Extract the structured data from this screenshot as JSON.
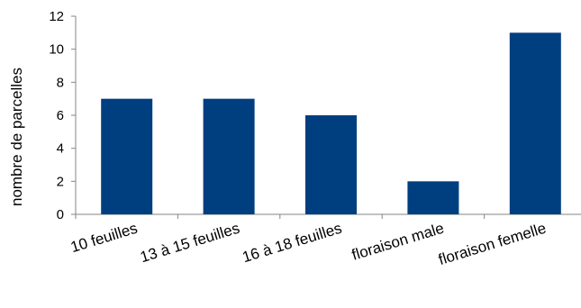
{
  "chart_data": {
    "type": "bar",
    "categories": [
      "10 feuilles",
      "13 à 15 feuilles",
      "16 à 18  feuilles",
      "floraison male",
      "floraison femelle"
    ],
    "values": [
      7,
      7,
      6,
      2,
      11
    ],
    "title": "",
    "xlabel": "",
    "ylabel": "nombre de parcelles",
    "ylim": [
      0,
      12
    ],
    "yticks": [
      0,
      2,
      4,
      6,
      8,
      10,
      12
    ],
    "grid": false,
    "legend": "none",
    "bar_color": "#003F7F",
    "axis_color": "#868686"
  }
}
